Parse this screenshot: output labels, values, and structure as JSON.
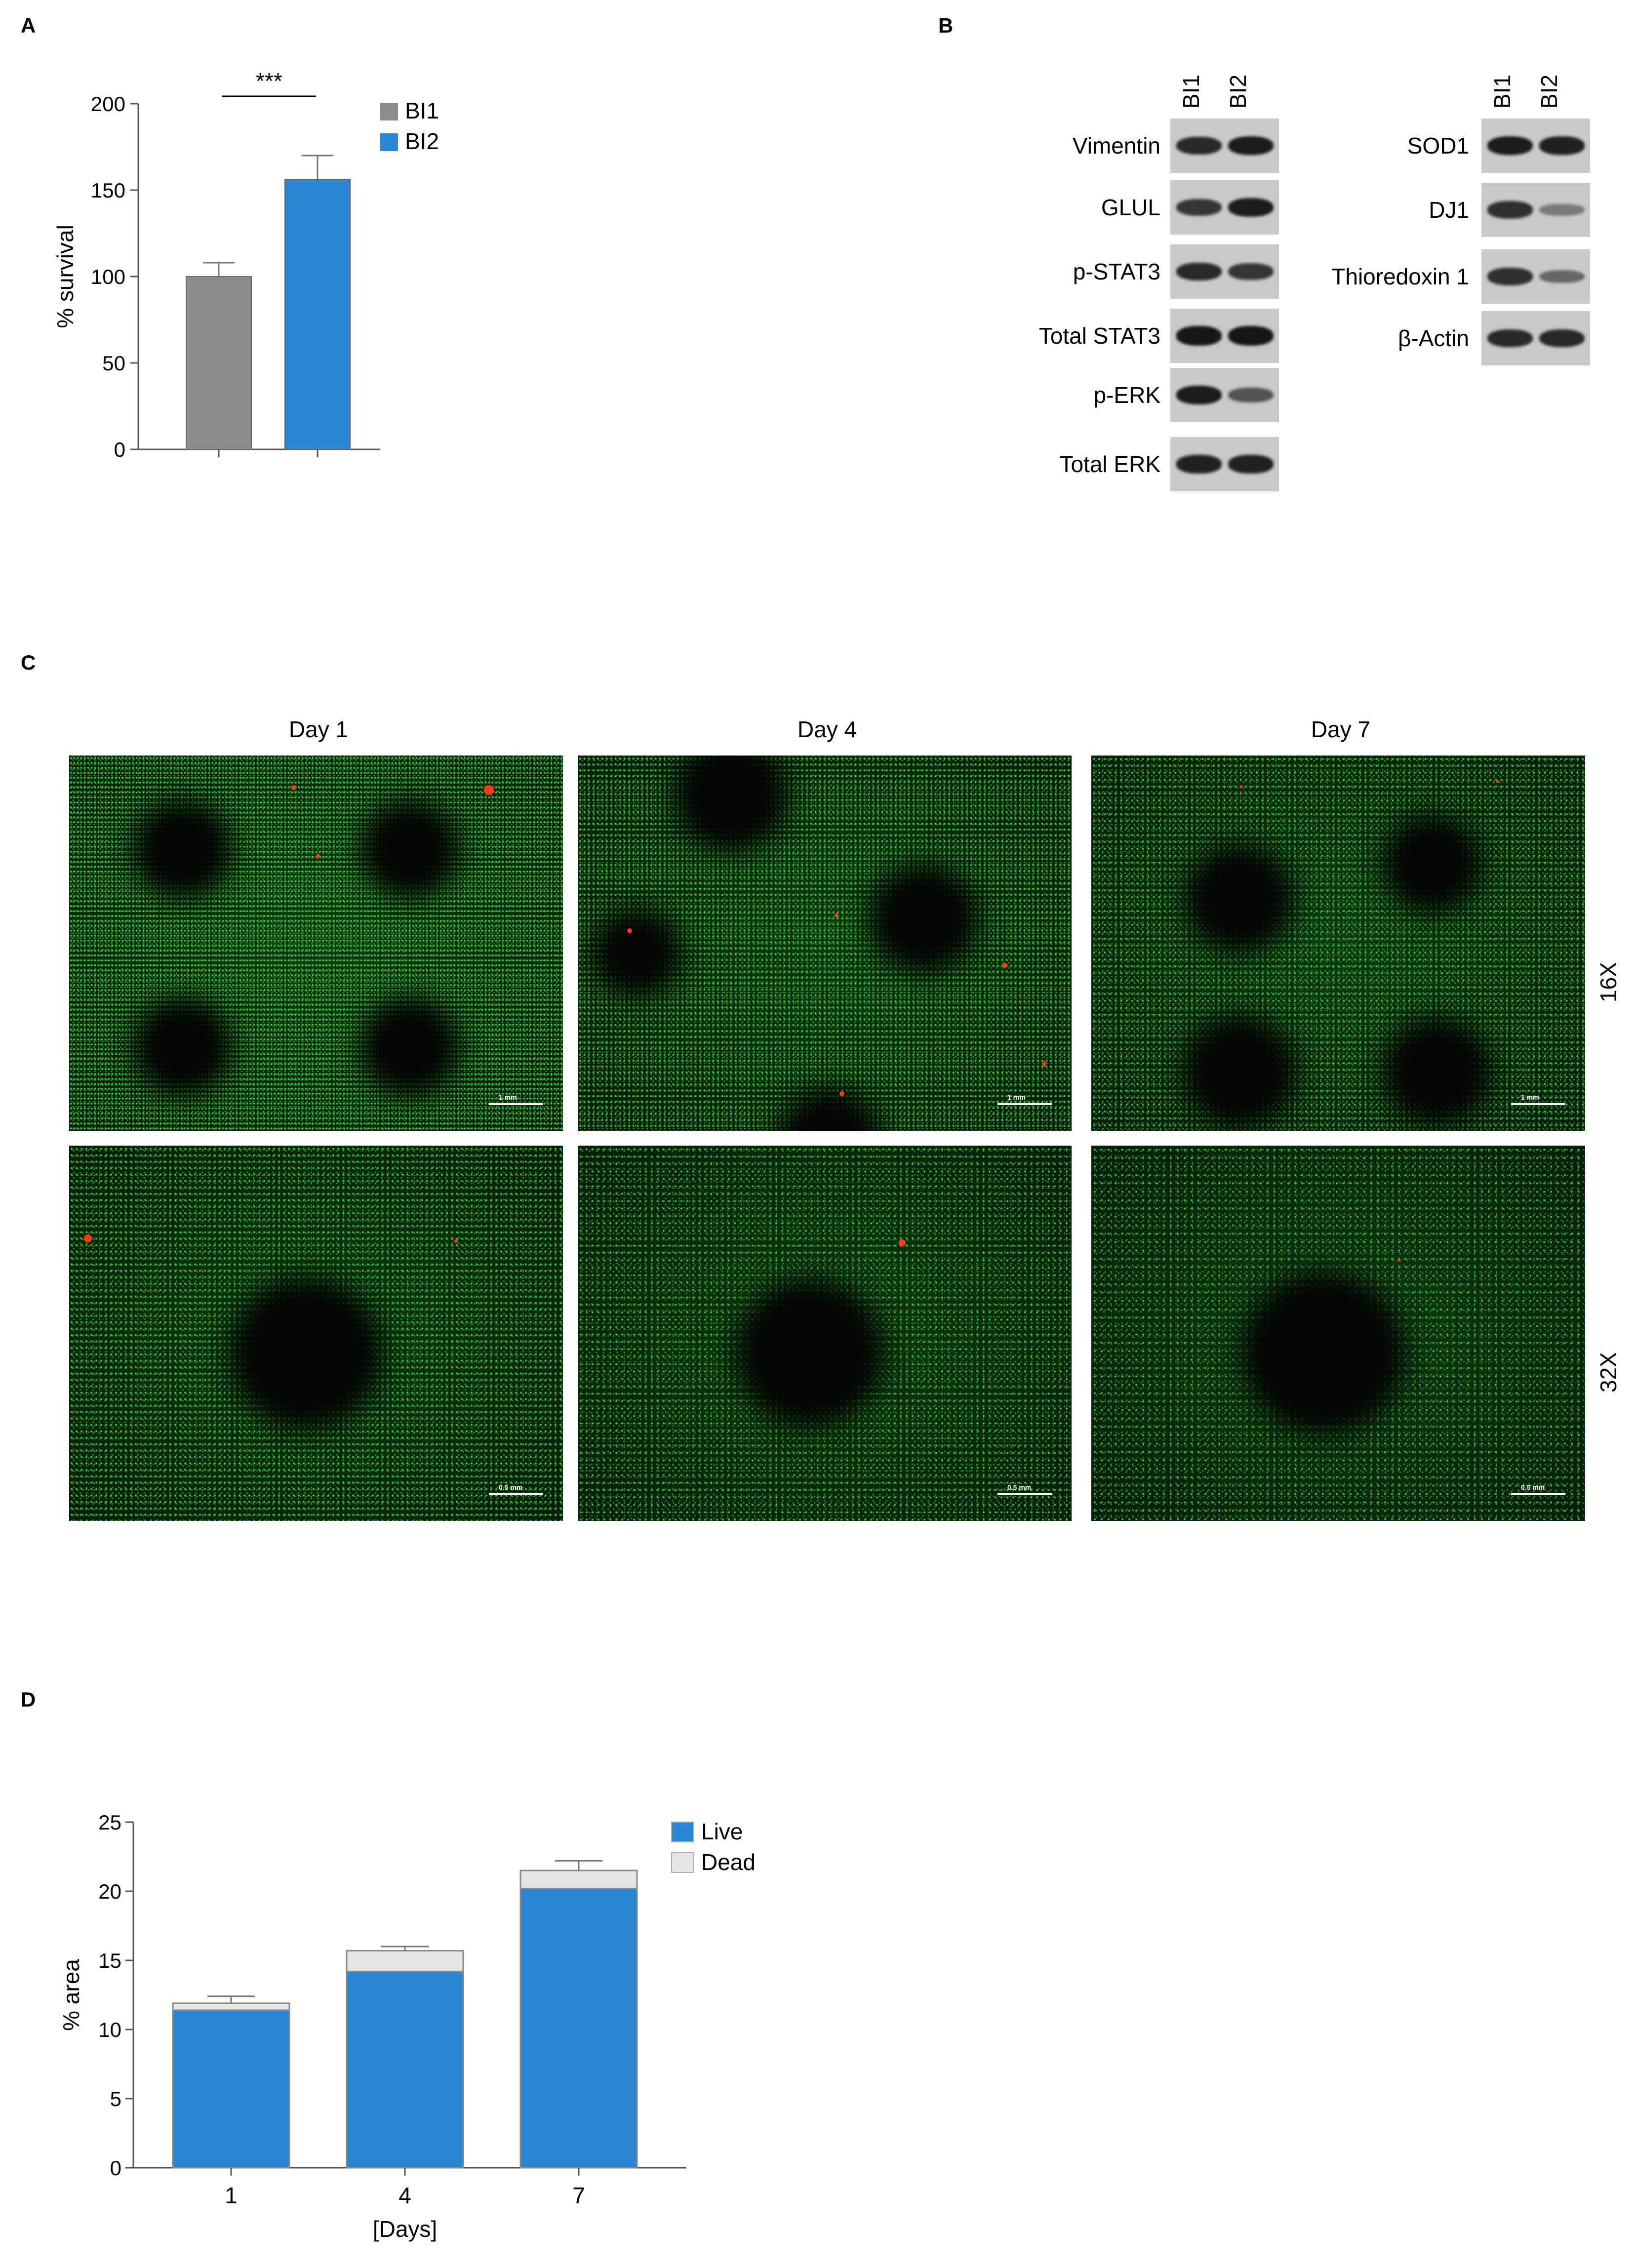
{
  "panels": {
    "a": "A",
    "b": "B",
    "c": "C",
    "d": "D"
  },
  "chart_a": {
    "type": "bar",
    "categories": [
      "BI1",
      "BI2"
    ],
    "values": [
      100,
      156
    ],
    "errors": [
      8,
      14
    ],
    "ylabel": "% survival",
    "ylim": [
      0,
      200
    ],
    "yticks": [
      0,
      50,
      100,
      150,
      200
    ],
    "significance": "***",
    "legend": [
      {
        "name": "BI1",
        "color": "#8c8c8c"
      },
      {
        "name": "BI2",
        "color": "#2a87d5"
      }
    ],
    "legend_position": "top-right"
  },
  "western_blot": {
    "lane_labels": [
      "BI1",
      "BI2"
    ],
    "left_rows": [
      {
        "label": "Vimentin",
        "bands": [
          0.85,
          0.95
        ]
      },
      {
        "label": "GLUL",
        "bands": [
          0.75,
          0.95
        ]
      },
      {
        "label": "p-STAT3",
        "bands": [
          0.85,
          0.75
        ]
      },
      {
        "label": "Total STAT3",
        "bands": [
          1.0,
          1.0
        ]
      },
      {
        "label": "p-ERK",
        "bands": [
          0.95,
          0.55
        ]
      },
      {
        "label": "Total ERK",
        "bands": [
          0.9,
          0.9
        ]
      }
    ],
    "right_rows": [
      {
        "label": "SOD1",
        "bands": [
          0.95,
          0.9
        ]
      },
      {
        "label": "DJ1",
        "bands": [
          0.8,
          0.25
        ]
      },
      {
        "label": "Thioredoxin 1",
        "bands": [
          0.8,
          0.4
        ]
      },
      {
        "label": "β-Actin",
        "bands": [
          0.85,
          0.85
        ]
      }
    ]
  },
  "microscopy": {
    "days": [
      "Day 1",
      "Day 4",
      "Day 7"
    ],
    "magnifications": [
      "16X",
      "32X"
    ],
    "scalebars": [
      "1 mm",
      "0.5 mm"
    ]
  },
  "chart_d": {
    "type": "bar",
    "stacked": true,
    "categories": [
      "1",
      "4",
      "7"
    ],
    "series": [
      {
        "name": "Live",
        "values": [
          11.4,
          14.2,
          20.2
        ],
        "errors": [
          0.3,
          0.3,
          0.4
        ],
        "color": "#2a87d5"
      },
      {
        "name": "Dead",
        "values": [
          0.5,
          1.5,
          1.3
        ],
        "errors": [
          0.5,
          0.3,
          0.7
        ],
        "color": "#e6e6e6"
      }
    ],
    "xlabel": "[Days]",
    "ylabel": "% area",
    "ylim": [
      0,
      25
    ],
    "yticks": [
      0,
      5,
      10,
      15,
      20,
      25
    ],
    "legend_position": "top-right"
  }
}
